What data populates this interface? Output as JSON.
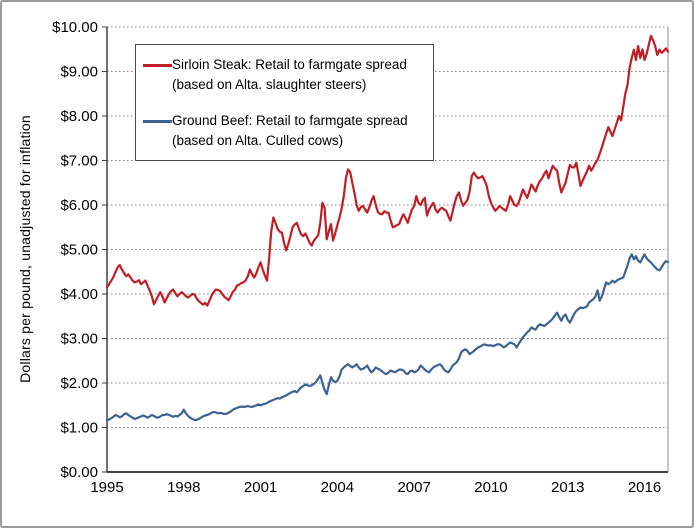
{
  "figure": {
    "background": "#ffffff",
    "frame_border_color": "#9a9a9a"
  },
  "chart_data": {
    "type": "line",
    "title": "",
    "xlabel": "",
    "ylabel": "Dollars per pound, unadjusted for inflation",
    "ylim": [
      0,
      10
    ],
    "y_tick_labels": [
      "$0.00",
      "$1.00",
      "$2.00",
      "$3.00",
      "$4.00",
      "$5.00",
      "$6.00",
      "$7.00",
      "$8.00",
      "$9.00",
      "$10.00"
    ],
    "x_tick_labels": [
      "1995",
      "1998",
      "2001",
      "2004",
      "2007",
      "2010",
      "2013",
      "2016"
    ],
    "x_start": {
      "year": 1995,
      "month": 1
    },
    "frequency": "monthly",
    "grid": "horizontal dotted",
    "gridline_color": "#7f7f7f",
    "axis_color": "#404040",
    "plot_border_color": "#b3b3b3",
    "legend_position": "upper-left inside plot",
    "series": [
      {
        "name": "Sirloin Steak: Retail to farmgate spread",
        "note": "(based on Alta. slaughter steers)",
        "color": "#c01e25",
        "values": [
          4.15,
          4.22,
          4.3,
          4.38,
          4.5,
          4.6,
          4.65,
          4.55,
          4.47,
          4.4,
          4.44,
          4.37,
          4.3,
          4.26,
          4.28,
          4.31,
          4.22,
          4.26,
          4.3,
          4.19,
          4.08,
          3.95,
          3.77,
          3.86,
          3.96,
          4.04,
          3.94,
          3.81,
          3.9,
          4.0,
          4.06,
          4.1,
          4.02,
          3.95,
          4.0,
          4.04,
          4.0,
          3.95,
          3.92,
          3.96,
          4.0,
          3.99,
          3.9,
          3.84,
          3.8,
          3.76,
          3.8,
          3.74,
          3.85,
          3.96,
          4.04,
          4.1,
          4.09,
          4.07,
          4.0,
          3.94,
          3.9,
          3.86,
          3.95,
          4.05,
          4.1,
          4.19,
          4.21,
          4.25,
          4.26,
          4.31,
          4.4,
          4.55,
          4.45,
          4.37,
          4.46,
          4.6,
          4.71,
          4.55,
          4.42,
          4.3,
          4.8,
          5.4,
          5.72,
          5.6,
          5.46,
          5.4,
          5.38,
          5.15,
          4.98,
          5.12,
          5.3,
          5.5,
          5.56,
          5.6,
          5.46,
          5.34,
          5.3,
          5.36,
          5.26,
          5.15,
          5.09,
          5.2,
          5.26,
          5.32,
          5.6,
          6.05,
          5.94,
          5.23,
          5.4,
          5.57,
          5.2,
          5.36,
          5.55,
          5.72,
          5.92,
          6.2,
          6.6,
          6.8,
          6.74,
          6.5,
          6.28,
          6.0,
          5.87,
          5.95,
          5.98,
          5.9,
          5.83,
          5.95,
          6.1,
          6.2,
          6.0,
          5.84,
          5.8,
          5.79,
          5.86,
          5.83,
          5.82,
          5.65,
          5.5,
          5.52,
          5.55,
          5.57,
          5.7,
          5.79,
          5.7,
          5.6,
          5.76,
          5.9,
          5.98,
          6.2,
          6.05,
          6.0,
          6.1,
          6.16,
          5.76,
          5.9,
          5.98,
          6.05,
          5.9,
          5.83,
          5.9,
          5.94,
          5.9,
          5.87,
          5.75,
          5.65,
          5.85,
          6.05,
          6.2,
          6.28,
          6.1,
          5.98,
          6.05,
          6.12,
          6.3,
          6.65,
          6.73,
          6.65,
          6.6,
          6.62,
          6.65,
          6.55,
          6.43,
          6.2,
          6.05,
          5.95,
          5.87,
          5.92,
          5.98,
          5.94,
          5.9,
          5.87,
          6.0,
          6.2,
          6.1,
          6.0,
          5.98,
          6.05,
          6.2,
          6.35,
          6.25,
          6.16,
          6.3,
          6.46,
          6.38,
          6.3,
          6.45,
          6.54,
          6.6,
          6.7,
          6.77,
          6.6,
          6.75,
          6.88,
          6.82,
          6.77,
          6.5,
          6.28,
          6.4,
          6.5,
          6.7,
          6.9,
          6.85,
          6.84,
          6.95,
          6.7,
          6.43,
          6.55,
          6.65,
          6.75,
          6.88,
          6.77,
          6.85,
          6.95,
          7.02,
          7.15,
          7.3,
          7.45,
          7.6,
          7.75,
          7.65,
          7.55,
          7.7,
          7.85,
          8.0,
          7.9,
          8.2,
          8.5,
          8.7,
          9.08,
          9.3,
          9.49,
          9.26,
          9.57,
          9.3,
          9.5,
          9.26,
          9.4,
          9.6,
          9.8,
          9.7,
          9.57,
          9.37,
          9.49,
          9.42,
          9.46,
          9.52,
          9.45
        ]
      },
      {
        "name": "Ground Beef: Retail to farmgate spread",
        "note": "(based on Alta. Culled cows)",
        "color": "#3c6291",
        "values": [
          1.16,
          1.18,
          1.21,
          1.24,
          1.28,
          1.26,
          1.23,
          1.25,
          1.3,
          1.32,
          1.28,
          1.25,
          1.22,
          1.19,
          1.21,
          1.23,
          1.25,
          1.27,
          1.25,
          1.22,
          1.25,
          1.28,
          1.26,
          1.23,
          1.22,
          1.25,
          1.28,
          1.28,
          1.3,
          1.28,
          1.26,
          1.24,
          1.26,
          1.25,
          1.28,
          1.32,
          1.4,
          1.32,
          1.26,
          1.22,
          1.19,
          1.17,
          1.17,
          1.19,
          1.22,
          1.25,
          1.27,
          1.28,
          1.3,
          1.33,
          1.35,
          1.34,
          1.32,
          1.33,
          1.32,
          1.3,
          1.31,
          1.33,
          1.36,
          1.4,
          1.42,
          1.44,
          1.46,
          1.47,
          1.46,
          1.47,
          1.48,
          1.47,
          1.46,
          1.48,
          1.5,
          1.52,
          1.5,
          1.52,
          1.53,
          1.55,
          1.58,
          1.6,
          1.62,
          1.64,
          1.66,
          1.65,
          1.68,
          1.7,
          1.72,
          1.75,
          1.78,
          1.8,
          1.82,
          1.79,
          1.85,
          1.9,
          1.93,
          1.97,
          1.95,
          1.93,
          1.95,
          1.98,
          2.02,
          2.1,
          2.17,
          2.0,
          1.84,
          1.75,
          1.95,
          2.13,
          2.05,
          2.02,
          2.05,
          2.15,
          2.3,
          2.35,
          2.39,
          2.42,
          2.38,
          2.35,
          2.38,
          2.42,
          2.35,
          2.3,
          2.32,
          2.35,
          2.39,
          2.3,
          2.24,
          2.28,
          2.35,
          2.32,
          2.3,
          2.26,
          2.22,
          2.2,
          2.24,
          2.28,
          2.26,
          2.24,
          2.27,
          2.3,
          2.3,
          2.28,
          2.22,
          2.2,
          2.26,
          2.28,
          2.24,
          2.26,
          2.3,
          2.39,
          2.35,
          2.3,
          2.26,
          2.24,
          2.3,
          2.35,
          2.38,
          2.4,
          2.42,
          2.38,
          2.3,
          2.26,
          2.24,
          2.3,
          2.39,
          2.43,
          2.47,
          2.55,
          2.69,
          2.73,
          2.76,
          2.72,
          2.65,
          2.68,
          2.72,
          2.76,
          2.8,
          2.82,
          2.85,
          2.87,
          2.85,
          2.84,
          2.85,
          2.83,
          2.85,
          2.87,
          2.87,
          2.84,
          2.8,
          2.83,
          2.87,
          2.91,
          2.89,
          2.87,
          2.8,
          2.88,
          2.95,
          3.03,
          3.08,
          3.14,
          3.18,
          3.25,
          3.22,
          3.2,
          3.28,
          3.32,
          3.3,
          3.28,
          3.32,
          3.36,
          3.4,
          3.45,
          3.52,
          3.58,
          3.48,
          3.4,
          3.5,
          3.54,
          3.42,
          3.36,
          3.45,
          3.55,
          3.62,
          3.66,
          3.7,
          3.68,
          3.7,
          3.72,
          3.81,
          3.85,
          3.88,
          3.95,
          4.08,
          3.85,
          3.95,
          4.1,
          4.26,
          4.22,
          4.25,
          4.3,
          4.26,
          4.3,
          4.33,
          4.35,
          4.37,
          4.5,
          4.64,
          4.8,
          4.89,
          4.78,
          4.85,
          4.75,
          4.71,
          4.8,
          4.89,
          4.8,
          4.75,
          4.71,
          4.65,
          4.6,
          4.55,
          4.53,
          4.6,
          4.68,
          4.74,
          4.72
        ]
      }
    ]
  }
}
